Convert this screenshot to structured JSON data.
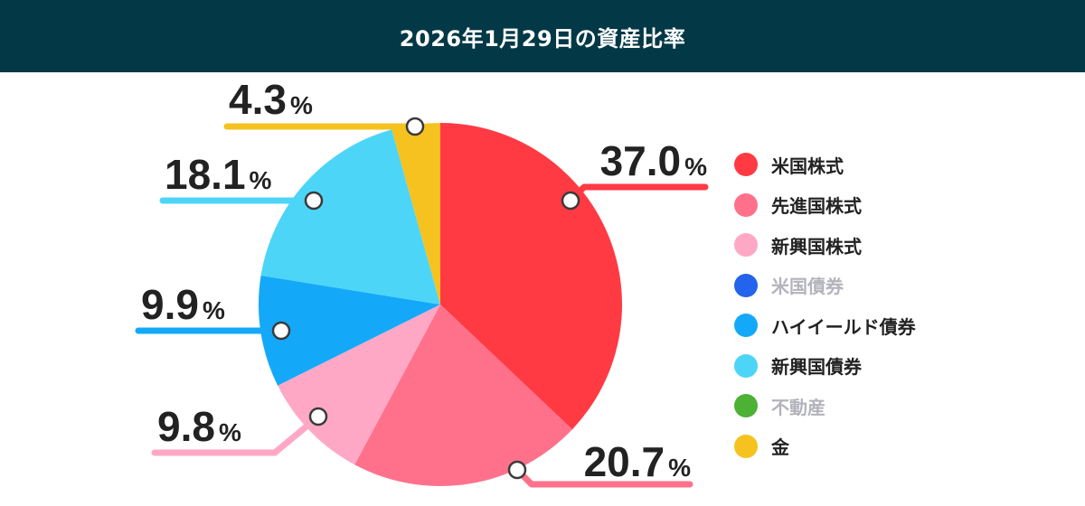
{
  "header": {
    "title": "2026年1月29日の資産比率"
  },
  "colors": {
    "header_bg": "#033846",
    "text": "#222222",
    "muted": "#b3b3bc"
  },
  "chart_data": {
    "type": "pie",
    "title": "2026年1月29日の資産比率",
    "unit": "%",
    "start_angle": "top (12 o'clock), clockwise",
    "slices": [
      {
        "label": "米国株式",
        "value": 37.0,
        "display": "37.0",
        "color": "#ff3a43"
      },
      {
        "label": "先進国株式",
        "value": 20.7,
        "display": "20.7",
        "color": "#ff718b"
      },
      {
        "label": "新興国株式",
        "value": 9.8,
        "display": "9.8",
        "color": "#ffa8c6"
      },
      {
        "label": "ハイイールド債券",
        "value": 9.9,
        "display": "9.9",
        "color": "#14a9f8"
      },
      {
        "label": "新興国債券",
        "value": 18.1,
        "display": "18.1",
        "color": "#4dd5f8"
      },
      {
        "label": "金",
        "value": 4.3,
        "display": "4.3",
        "color": "#f5c21f"
      }
    ],
    "legend": [
      {
        "label": "米国株式",
        "color": "#ff3a43",
        "muted": false
      },
      {
        "label": "先進国株式",
        "color": "#ff718b",
        "muted": false
      },
      {
        "label": "新興国株式",
        "color": "#ffa8c6",
        "muted": false
      },
      {
        "label": "米国債券",
        "color": "#2463eb",
        "muted": true
      },
      {
        "label": "ハイイールド債券",
        "color": "#14a9f8",
        "muted": false
      },
      {
        "label": "新興国債券",
        "color": "#4dd5f8",
        "muted": false
      },
      {
        "label": "不動産",
        "color": "#4cb135",
        "muted": true
      },
      {
        "label": "金",
        "color": "#f5c21f",
        "muted": false
      }
    ],
    "legend_position": "right"
  }
}
